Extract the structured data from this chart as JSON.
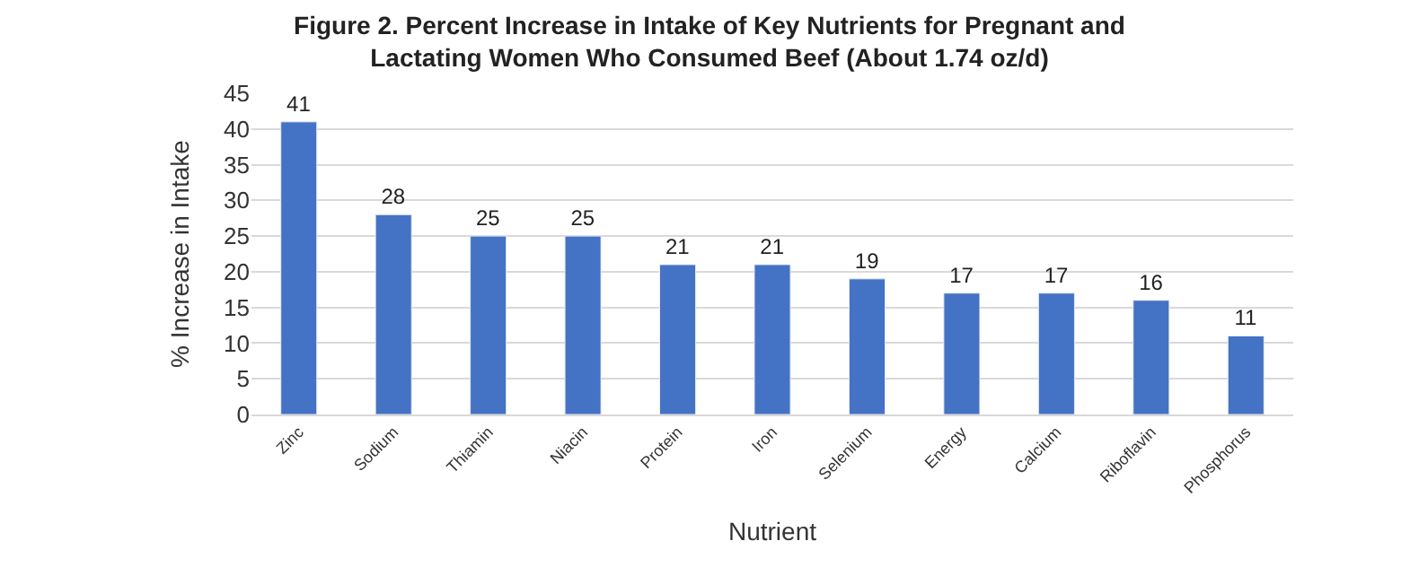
{
  "chart_data": {
    "type": "bar",
    "title": "Figure 2. Percent Increase in Intake of Key Nutrients for Pregnant and Lactating Women Who Consumed Beef (About 1.74 oz/d)",
    "xlabel": "Nutrient",
    "ylabel": "% Increase in Intake",
    "categories": [
      "Zinc",
      "Sodium",
      "Thiamin",
      "Niacin",
      "Protein",
      "Iron",
      "Selenium",
      "Energy",
      "Calcium",
      "Riboflavin",
      "Phosphorus"
    ],
    "values": [
      41,
      28,
      25,
      25,
      21,
      21,
      19,
      17,
      17,
      16,
      11
    ],
    "color": "#4472c4",
    "ylim": [
      0,
      45
    ],
    "yticks": [
      0,
      5,
      10,
      15,
      20,
      25,
      30,
      35,
      40,
      45
    ],
    "grid": "y",
    "data_labels": true,
    "legend": false
  }
}
